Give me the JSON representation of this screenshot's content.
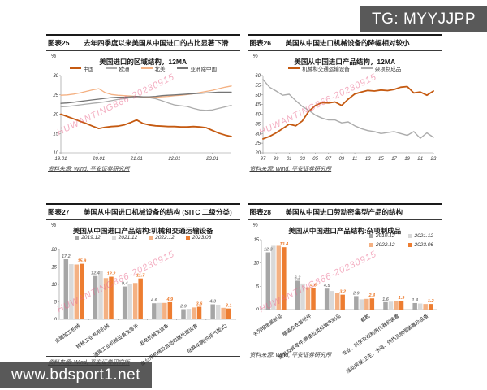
{
  "banners": {
    "telegram": "TG: MYYJJPP",
    "website": "www.bdsport1.net"
  },
  "watermark": "HUWANTING866-20230915",
  "figures": [
    {
      "number": "图表25",
      "caption": "去年四季度以来美国从中国进口的占比显著下滑",
      "source": "资料来源: Wind, 平安证券研究所"
    },
    {
      "number": "图表26",
      "caption": "美国从中国进口机械设备的降幅相对较小",
      "source": "资料来源: Wind, 平安证券研究所"
    },
    {
      "number": "图表27",
      "caption": "美国从中国进口机械设备的结构 (SITC 二级分类)",
      "source": "资料来源: Wind, 平安证券研究所"
    },
    {
      "number": "图表28",
      "caption": "美国从中国进口劳动密集型产品的结构",
      "source": "资料来源: Wind, 平安证券研究所"
    }
  ],
  "colors": {
    "orange_dark": "#C55A11",
    "orange": "#ED7D31",
    "orange_light": "#F4B183",
    "gray": "#A6A6A6",
    "gray_light": "#D9D9D9",
    "gray_dark": "#757575",
    "banner_bg": "#595959",
    "watermark_pink": "#E9688D"
  },
  "chart_data": [
    {
      "type": "line",
      "title": "美国进口的区域结构，12MA",
      "unit": "%",
      "ylim": [
        10,
        30
      ],
      "yticks": [
        10,
        15,
        20,
        25,
        30
      ],
      "xticks": [
        {
          "i": 0,
          "label": "19.01"
        },
        {
          "i": 6,
          "label": "20.01"
        },
        {
          "i": 12,
          "label": "21.01"
        },
        {
          "i": 18,
          "label": "22.01"
        },
        {
          "i": 24,
          "label": "23.01"
        }
      ],
      "series": [
        {
          "name": "中国",
          "color": "#C55A11",
          "width": 1.8,
          "values": [
            20.0,
            19.4,
            18.8,
            18.2,
            17.6,
            16.9,
            16.3,
            16.6,
            16.8,
            16.9,
            17.2,
            17.8,
            18.5,
            17.6,
            17.2,
            17.0,
            16.9,
            16.8,
            16.8,
            16.7,
            16.7,
            16.8,
            16.7,
            16.5,
            15.8,
            15.1,
            14.6,
            14.2
          ]
        },
        {
          "name": "欧洲",
          "color": "#ACACAC",
          "width": 1.3,
          "values": [
            21.9,
            22.0,
            22.2,
            22.4,
            22.6,
            22.8,
            23.0,
            23.2,
            23.5,
            23.8,
            24.0,
            24.3,
            24.5,
            24.4,
            24.3,
            24.0,
            23.5,
            22.9,
            22.4,
            22.2,
            22.0,
            21.5,
            21.1,
            21.0,
            21.1,
            21.5,
            21.9,
            22.3
          ]
        },
        {
          "name": "北美",
          "color": "#F4B183",
          "width": 1.3,
          "values": [
            24.9,
            25.0,
            25.2,
            25.5,
            25.9,
            26.3,
            26.6,
            25.6,
            25.1,
            24.9,
            24.8,
            24.7,
            24.6,
            24.5,
            24.4,
            24.4,
            24.5,
            24.6,
            24.8,
            24.9,
            25.1,
            25.3,
            25.6,
            25.9,
            26.2,
            26.6,
            27.0,
            27.3
          ]
        },
        {
          "name": "亚洲除中国",
          "color": "#757575",
          "width": 1.3,
          "values": [
            22.8,
            22.9,
            23.1,
            23.3,
            23.5,
            23.7,
            23.9,
            24.1,
            24.3,
            24.4,
            24.4,
            24.5,
            24.6,
            24.5,
            24.5,
            24.6,
            24.8,
            24.9,
            25.0,
            25.1,
            25.2,
            25.3,
            25.4,
            25.5,
            25.6,
            25.7,
            25.7,
            25.7
          ]
        }
      ]
    },
    {
      "type": "line",
      "title": "美国从中国进口产品结构，12MA",
      "unit": "%",
      "ylim": [
        20,
        60
      ],
      "yticks": [
        20,
        25,
        30,
        35,
        40,
        45,
        50,
        55,
        60
      ],
      "xticks": [
        {
          "i": 0,
          "label": "97"
        },
        {
          "i": 2,
          "label": "99"
        },
        {
          "i": 4,
          "label": "01"
        },
        {
          "i": 6,
          "label": "03"
        },
        {
          "i": 8,
          "label": "05"
        },
        {
          "i": 10,
          "label": "07"
        },
        {
          "i": 12,
          "label": "09"
        },
        {
          "i": 14,
          "label": "11"
        },
        {
          "i": 16,
          "label": "13"
        },
        {
          "i": 18,
          "label": "15"
        },
        {
          "i": 20,
          "label": "17"
        },
        {
          "i": 22,
          "label": "19"
        },
        {
          "i": 24,
          "label": "21"
        },
        {
          "i": 26,
          "label": "23"
        }
      ],
      "series": [
        {
          "name": "机械和交通运输设备",
          "color": "#C55A11",
          "width": 1.8,
          "values": [
            27.2,
            28.5,
            30.3,
            32.5,
            34.8,
            34.0,
            36.5,
            41.5,
            44.5,
            46.0,
            45.8,
            46.3,
            44.5,
            47.8,
            50.5,
            51.5,
            52.3,
            52.0,
            52.5,
            52.2,
            52.8,
            54.0,
            54.3,
            51.0,
            51.5,
            49.8,
            52.0
          ]
        },
        {
          "name": "杂项制成品",
          "color": "#ACACAC",
          "width": 1.4,
          "values": [
            58.0,
            54.0,
            52.0,
            49.8,
            50.3,
            47.0,
            44.0,
            42.0,
            39.5,
            38.0,
            37.0,
            37.0,
            35.5,
            36.0,
            34.0,
            32.5,
            31.5,
            31.0,
            30.0,
            30.5,
            31.0,
            30.0,
            29.0,
            31.0,
            27.5,
            30.3,
            28.0
          ]
        }
      ]
    },
    {
      "type": "bar",
      "title": "美国从中国进口产品结构:机械和交通运输设备",
      "unit": "%",
      "ylim": [
        0,
        20
      ],
      "yticks": [
        0,
        5,
        10,
        15,
        20
      ],
      "categories": [
        "金属加工机械",
        "特种工业专用机械",
        "通用工业机械设备及零件",
        "发电机械及设备",
        "办公用机械及自动数据处理设备",
        "陆路车辆(包括气垫式)"
      ],
      "series": [
        {
          "name": "2019.12",
          "color": "#A6A6A6",
          "values": [
            17.2,
            12.4,
            9.4,
            4.6,
            2.9,
            4.3
          ]
        },
        {
          "name": "2021.12",
          "color": "#D9D9D9",
          "values": [
            15.8,
            13.8,
            10.0,
            4.7,
            3.0,
            4.2
          ]
        },
        {
          "name": "2022.12",
          "color": "#F4B183",
          "values": [
            15.7,
            11.8,
            10.4,
            4.7,
            3.4,
            3.3
          ]
        },
        {
          "name": "2023.06",
          "color": "#ED7D31",
          "values": [
            15.9,
            12.2,
            11.7,
            4.9,
            3.6,
            3.1
          ]
        }
      ],
      "label_series": [
        0,
        3
      ],
      "label_colors": [
        "#7F7F7F",
        "#ED7D31"
      ]
    },
    {
      "type": "bar",
      "title": "美国从中国进口产品结构:杂项制成品",
      "unit": "%",
      "legend_position": "overlay",
      "ylim": [
        0,
        15
      ],
      "yticks": [
        0,
        5,
        10,
        15
      ],
      "categories": [
        "未列明金属制品",
        "服装及衣着附件",
        "家具及其零件;褥垫及类似填充制品",
        "鞋靴",
        "专业、科学及控制用仪器和装置",
        "活动房屋;卫生、水道、供热及照明装置及设备"
      ],
      "series": [
        {
          "name": "2019.12",
          "color": "#A6A6A6",
          "values": [
            12.3,
            6.2,
            4.5,
            2.9,
            1.6,
            1.4
          ]
        },
        {
          "name": "2021.12",
          "color": "#D9D9D9",
          "values": [
            13.7,
            5.6,
            4.0,
            2.2,
            1.7,
            1.3
          ]
        },
        {
          "name": "2022.12",
          "color": "#F4B183",
          "values": [
            13.7,
            4.8,
            3.5,
            2.3,
            1.8,
            1.2
          ]
        },
        {
          "name": "2023.06",
          "color": "#ED7D31",
          "values": [
            13.4,
            4.6,
            3.2,
            2.4,
            1.9,
            1.2
          ]
        }
      ],
      "label_series": [
        0,
        3
      ],
      "label_colors": [
        "#7F7F7F",
        "#ED7D31"
      ]
    }
  ]
}
